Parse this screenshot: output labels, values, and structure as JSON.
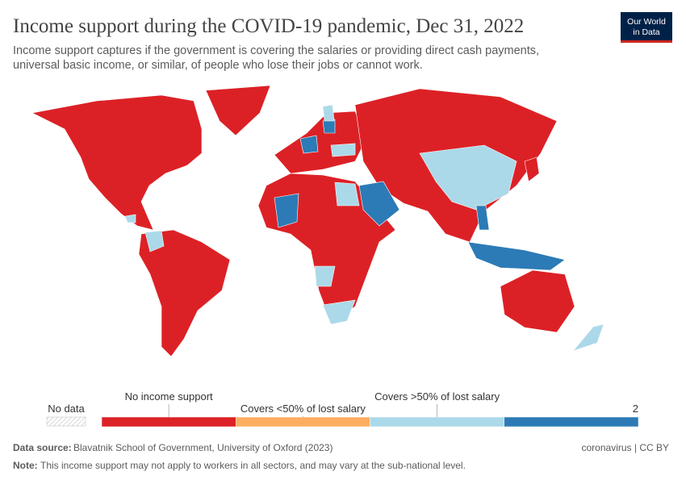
{
  "header": {
    "title": "Income support during the COVID-19 pandemic, Dec 31, 2022",
    "subtitle": [
      "Income support captures if the government is covering the salaries or providing direct cash payments,",
      "universal basic income, or similar, of people who lose their jobs or cannot work."
    ],
    "logo": [
      "Our World",
      "in Data"
    ]
  },
  "legend": {
    "no_data": "No data",
    "bins": [
      {
        "label": "No income support",
        "color": "#dc2126"
      },
      {
        "label": "Covers <50% of lost salary",
        "color": "#fdae61"
      },
      {
        "label": "Covers >50% of lost salary",
        "color": "#abd9e9"
      },
      {
        "label": "2",
        "color": "#2c7bb6"
      }
    ]
  },
  "footer": {
    "source_label": "Data source:",
    "source": "Blavatnik School of Government, University of Oxford (2023)",
    "license": "coronavirus | CC BY",
    "note_label": "Note:",
    "note": "This income support may not apply to workers in all sectors, and may vary at the sub-national level."
  }
}
